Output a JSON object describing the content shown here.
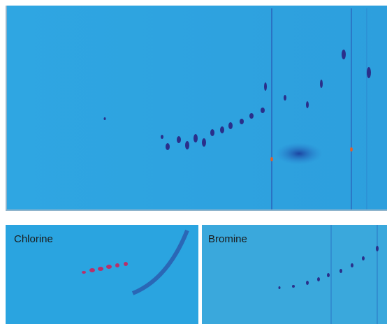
{
  "panels": [
    {
      "label": "Chlorine"
    },
    {
      "label": "Bromine"
    }
  ]
}
